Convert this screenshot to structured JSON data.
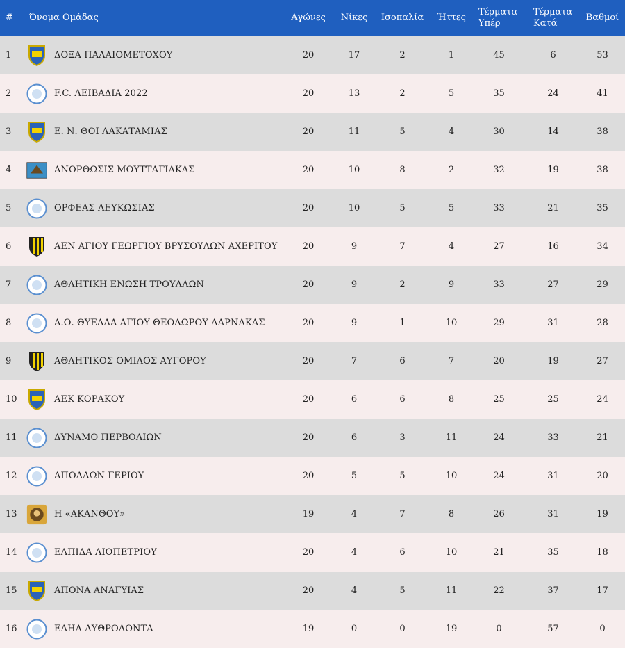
{
  "colors": {
    "header_bg": "#1f5fbf",
    "row_odd": "#dcdcdc",
    "row_even": "#f7eded"
  },
  "columns": {
    "pos": "#",
    "team": "Όνομα Ομάδας",
    "played": "Αγώνες",
    "wins": "Νίκες",
    "draws": "Ισοπαλία",
    "losses": "Ήττες",
    "gf_line1": "Τέρματα",
    "gf_line2": "Υπέρ",
    "ga_line1": "Τέρματα",
    "ga_line2": "Κατά",
    "points": "Βαθμοί"
  },
  "rows": [
    {
      "pos": "1",
      "team": "ΔΟΞΑ ΠΑΛΑΙΟΜΕΤΟΧΟΥ",
      "logo": "shield-icon",
      "played": "20",
      "wins": "17",
      "draws": "2",
      "losses": "1",
      "gf": "45",
      "ga": "6",
      "pts": "53"
    },
    {
      "pos": "2",
      "team": "F.C. ΛΕΙΒΑΔΙΑ 2022",
      "logo": "circle-crest-icon",
      "played": "20",
      "wins": "13",
      "draws": "2",
      "losses": "5",
      "gf": "35",
      "ga": "24",
      "pts": "41"
    },
    {
      "pos": "3",
      "team": "Ε. Ν. ΘΟΙ ΛΑΚΑΤΑΜΙΑΣ",
      "logo": "shield-icon",
      "played": "20",
      "wins": "11",
      "draws": "5",
      "losses": "4",
      "gf": "30",
      "ga": "14",
      "pts": "38"
    },
    {
      "pos": "4",
      "team": "ΑΝΟΡΘΩΣΙΣ ΜΟΥΤΤΑΓΙΑΚΑΣ",
      "logo": "eagle-crest-icon",
      "played": "20",
      "wins": "10",
      "draws": "8",
      "losses": "2",
      "gf": "32",
      "ga": "19",
      "pts": "38"
    },
    {
      "pos": "5",
      "team": "ΟΡΦΕΑΣ ΛΕΥΚΩΣΙΑΣ",
      "logo": "circle-crest-icon",
      "played": "20",
      "wins": "10",
      "draws": "5",
      "losses": "5",
      "gf": "33",
      "ga": "21",
      "pts": "35"
    },
    {
      "pos": "6",
      "team": "ΑΕΝ ΑΓΙΟΥ ΓΕΩΡΓΙΟΥ ΒΡΥΣΟΥΛΩΝ ΑΧΕΡΙΤΟΥ",
      "logo": "striped-shield-icon",
      "played": "20",
      "wins": "9",
      "draws": "7",
      "losses": "4",
      "gf": "27",
      "ga": "16",
      "pts": "34"
    },
    {
      "pos": "7",
      "team": "ΑΘΛΗΤΙΚΗ ΕΝΩΣΗ ΤΡΟΥΛΛΩΝ",
      "logo": "circle-crest-icon",
      "played": "20",
      "wins": "9",
      "draws": "2",
      "losses": "9",
      "gf": "33",
      "ga": "27",
      "pts": "29"
    },
    {
      "pos": "8",
      "team": "Α.Ο. ΘΥΕΛΛΑ ΑΓΙΟΥ ΘΕΟΔΩΡΟΥ ΛΑΡΝΑΚΑΣ",
      "logo": "circle-crest-icon",
      "played": "20",
      "wins": "9",
      "draws": "1",
      "losses": "10",
      "gf": "29",
      "ga": "31",
      "pts": "28"
    },
    {
      "pos": "9",
      "team": "ΑΘΛΗΤΙΚΟΣ ΟΜΙΛΟΣ ΑΥΓΟΡΟΥ",
      "logo": "striped-shield-icon",
      "played": "20",
      "wins": "7",
      "draws": "6",
      "losses": "7",
      "gf": "20",
      "ga": "19",
      "pts": "27"
    },
    {
      "pos": "10",
      "team": "ΑΕΚ ΚΟΡΑΚΟΥ",
      "logo": "shield-icon",
      "played": "20",
      "wins": "6",
      "draws": "6",
      "losses": "8",
      "gf": "25",
      "ga": "25",
      "pts": "24"
    },
    {
      "pos": "11",
      "team": "ΔΥΝΑΜΟ ΠΕΡΒΟΛΙΩΝ",
      "logo": "circle-crest-icon",
      "played": "20",
      "wins": "6",
      "draws": "3",
      "losses": "11",
      "gf": "24",
      "ga": "33",
      "pts": "21"
    },
    {
      "pos": "12",
      "team": "ΑΠΟΛΛΩΝ ΓΕΡΙΟΥ",
      "logo": "circle-crest-icon",
      "played": "20",
      "wins": "5",
      "draws": "5",
      "losses": "10",
      "gf": "24",
      "ga": "31",
      "pts": "20"
    },
    {
      "pos": "13",
      "team": "Η «ΑΚΑΝΘΟΥ»",
      "logo": "portrait-icon",
      "played": "19",
      "wins": "4",
      "draws": "7",
      "losses": "8",
      "gf": "26",
      "ga": "31",
      "pts": "19"
    },
    {
      "pos": "14",
      "team": "ΕΛΠΙΔΑ ΛΙΟΠΕΤΡΙΟΥ",
      "logo": "circle-crest-icon",
      "played": "20",
      "wins": "4",
      "draws": "6",
      "losses": "10",
      "gf": "21",
      "ga": "35",
      "pts": "18"
    },
    {
      "pos": "15",
      "team": "ΑΠΟΝΑ ΑΝΑΓΥΙΑΣ",
      "logo": "shield-icon",
      "played": "20",
      "wins": "4",
      "draws": "5",
      "losses": "11",
      "gf": "22",
      "ga": "37",
      "pts": "17"
    },
    {
      "pos": "16",
      "team": "ΕΛΗΑ ΛΥΘΡΟΔΟΝΤΑ",
      "logo": "circle-crest-icon",
      "played": "19",
      "wins": "0",
      "draws": "0",
      "losses": "19",
      "gf": "0",
      "ga": "57",
      "pts": "0"
    }
  ]
}
